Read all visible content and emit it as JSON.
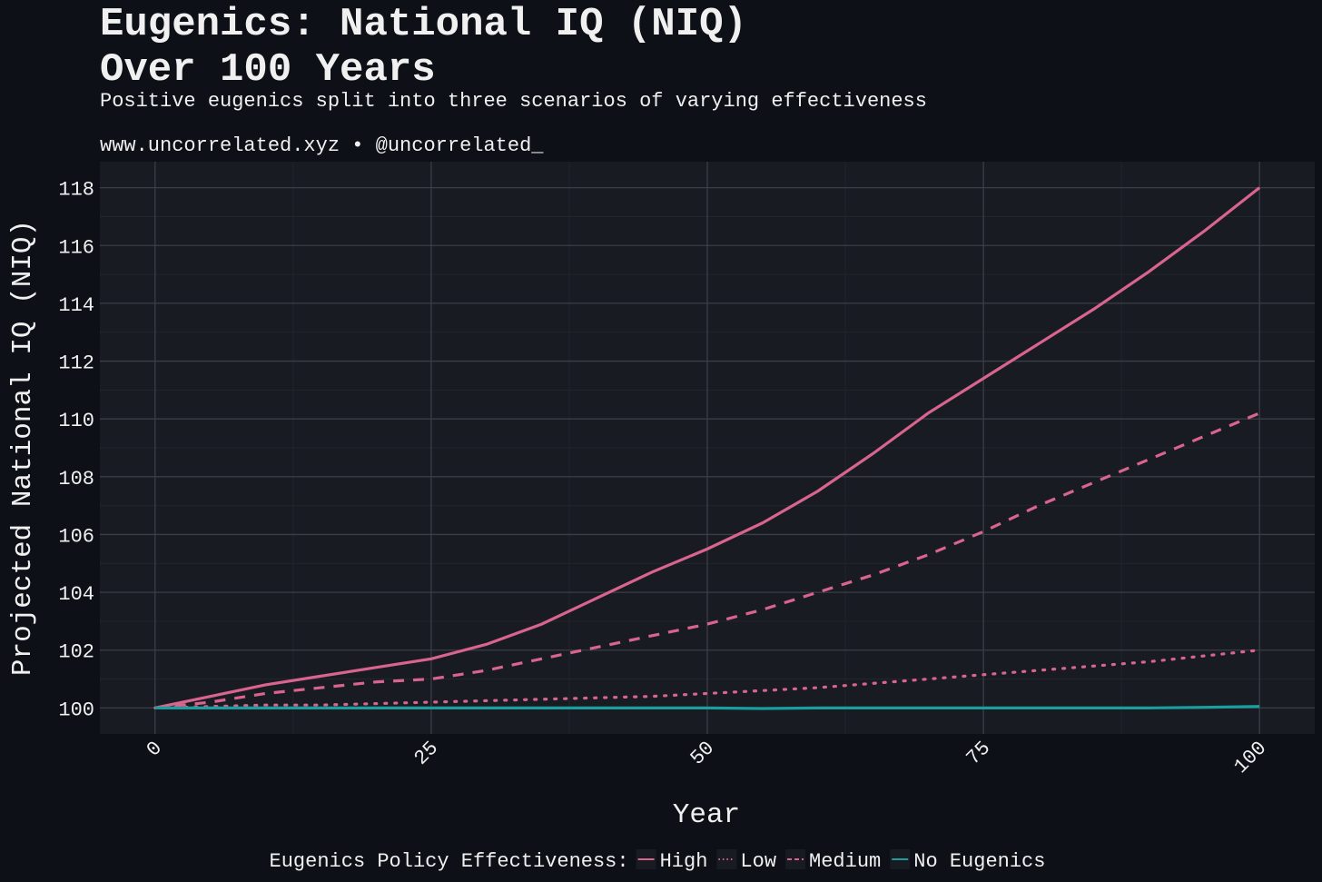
{
  "chart_data": {
    "type": "line",
    "title": [
      "Eugenics: National IQ (NIQ)",
      "Over 100 Years"
    ],
    "subtitle": "Positive eugenics split into three scenarios of varying effectiveness",
    "caption": "www.uncorrelated.xyz • @uncorrelated_",
    "x_label": "Year",
    "y_label": "Projected National IQ (NIQ)",
    "legend_title": "Eugenics Policy Effectiveness:",
    "legend_position": "bottom",
    "grid": true,
    "x": [
      0,
      5,
      10,
      15,
      20,
      25,
      30,
      35,
      40,
      45,
      50,
      55,
      60,
      65,
      70,
      75,
      80,
      85,
      90,
      95,
      100
    ],
    "series": [
      {
        "name": "High",
        "color": "#d9648e",
        "linetype": "solid",
        "values": [
          100,
          100.4,
          100.8,
          101.1,
          101.4,
          101.7,
          102.2,
          102.9,
          103.8,
          104.7,
          105.5,
          106.4,
          107.5,
          108.8,
          110.2,
          111.4,
          112.6,
          113.8,
          115.1,
          116.5,
          118.0
        ]
      },
      {
        "name": "Low",
        "color": "#d9648e",
        "linetype": "dotted",
        "values": [
          100,
          100.05,
          100.1,
          100.1,
          100.15,
          100.2,
          100.25,
          100.3,
          100.35,
          100.4,
          100.5,
          100.6,
          100.7,
          100.85,
          101.0,
          101.15,
          101.3,
          101.45,
          101.6,
          101.8,
          102.0
        ]
      },
      {
        "name": "Medium",
        "color": "#d9648e",
        "linetype": "dashed",
        "values": [
          100,
          100.2,
          100.5,
          100.7,
          100.9,
          101.0,
          101.3,
          101.7,
          102.1,
          102.5,
          102.9,
          103.4,
          104.0,
          104.6,
          105.3,
          106.1,
          107.0,
          107.8,
          108.6,
          109.4,
          110.2
        ]
      },
      {
        "name": "No Eugenics",
        "color": "#1a9e9e",
        "linetype": "solid",
        "values": [
          100,
          100,
          100,
          100,
          100,
          100,
          100,
          100,
          100,
          100,
          100,
          99.98,
          100,
          100,
          100,
          100,
          100,
          100,
          100,
          100.02,
          100.05
        ]
      }
    ],
    "xlim": [
      -5,
      105
    ],
    "xticks": [
      0,
      25,
      50,
      75,
      100
    ],
    "ylim": [
      99.1,
      118.9
    ],
    "yticks": [
      100,
      102,
      104,
      106,
      108,
      110,
      112,
      114,
      116,
      118
    ]
  }
}
